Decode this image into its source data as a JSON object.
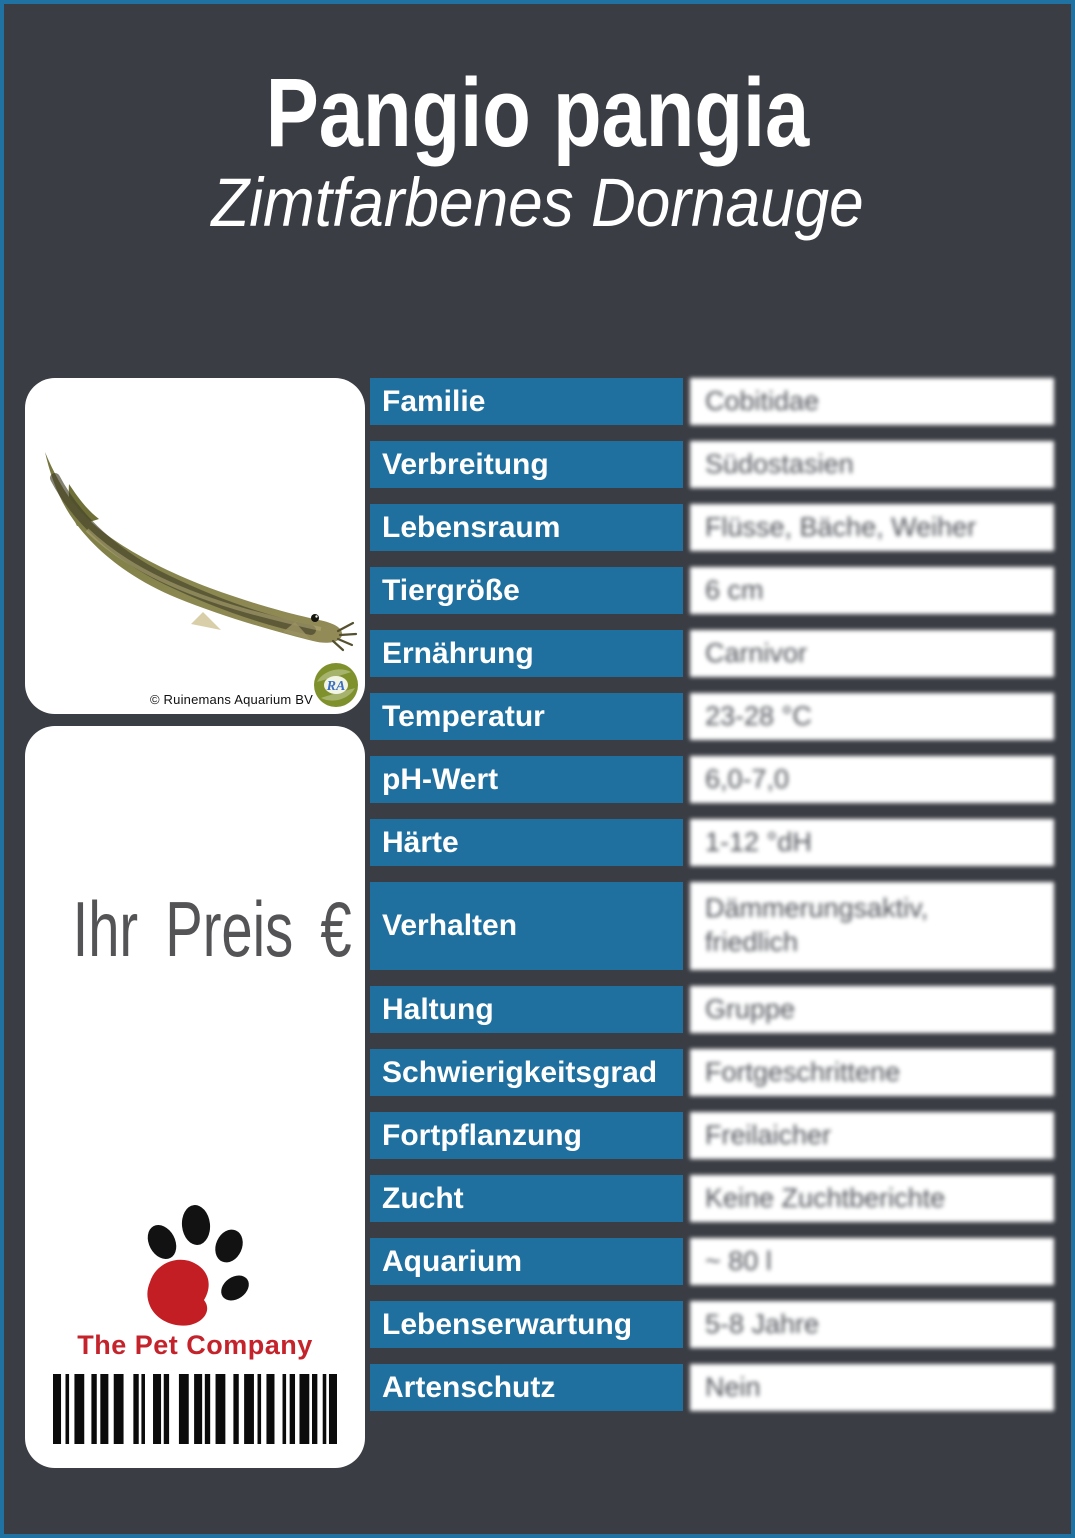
{
  "colors": {
    "background": "#3a3d44",
    "accent_blue": "#20709f",
    "border_blue": "#1f72a2",
    "brand_red": "#c4232b",
    "price_gray": "#545456"
  },
  "header": {
    "title": "Pangio pangia",
    "subtitle": "Zimtfarbenes Dornauge"
  },
  "photo_card": {
    "copyright": "© Ruinemans Aquarium BV",
    "logo_monogram": "RA"
  },
  "price_card": {
    "price_label": "Ihr Preis €",
    "brand": "The Pet Company",
    "barcode": [
      [
        9,
        5
      ],
      [
        4,
        6
      ],
      [
        11,
        8
      ],
      [
        6,
        4
      ],
      [
        9,
        6
      ],
      [
        11,
        11
      ],
      [
        6,
        3
      ],
      [
        4,
        9
      ],
      [
        9,
        3
      ],
      [
        6,
        11
      ],
      [
        11,
        6
      ],
      [
        9,
        3
      ],
      [
        6,
        6
      ],
      [
        11,
        9
      ],
      [
        6,
        6
      ],
      [
        11,
        4
      ],
      [
        4,
        6
      ],
      [
        9,
        9
      ],
      [
        4,
        4
      ],
      [
        6,
        5
      ],
      [
        11,
        3
      ],
      [
        6,
        6
      ],
      [
        4,
        3
      ],
      [
        9,
        0
      ]
    ]
  },
  "table": {
    "rows": [
      {
        "label": "Familie",
        "value": "Cobitidae"
      },
      {
        "label": "Verbreitung",
        "value": "Südostasien"
      },
      {
        "label": "Lebensraum",
        "value": "Flüsse, Bäche, Weiher"
      },
      {
        "label": "Tiergröße",
        "value": "6 cm"
      },
      {
        "label": "Ernährung",
        "value": "Carnivor"
      },
      {
        "label": "Temperatur",
        "value": "23-28 °C"
      },
      {
        "label": "pH-Wert",
        "value": "6,0-7,0"
      },
      {
        "label": "Härte",
        "value": "1-12 °dH"
      },
      {
        "label": "Verhalten",
        "value": "Dämmerungsaktiv,\nfriedlich",
        "tall": true
      },
      {
        "label": "Haltung",
        "value": "Gruppe"
      },
      {
        "label": "Schwierigkeitsgrad",
        "value": "Fortgeschrittene"
      },
      {
        "label": "Fortpflanzung",
        "value": "Freilaicher"
      },
      {
        "label": "Zucht",
        "value": "Keine Zuchtberichte"
      },
      {
        "label": "Aquarium",
        "value": "~ 80 l"
      },
      {
        "label": "Lebenserwartung",
        "value": "5-8 Jahre"
      },
      {
        "label": "Artenschutz",
        "value": "Nein"
      }
    ]
  }
}
